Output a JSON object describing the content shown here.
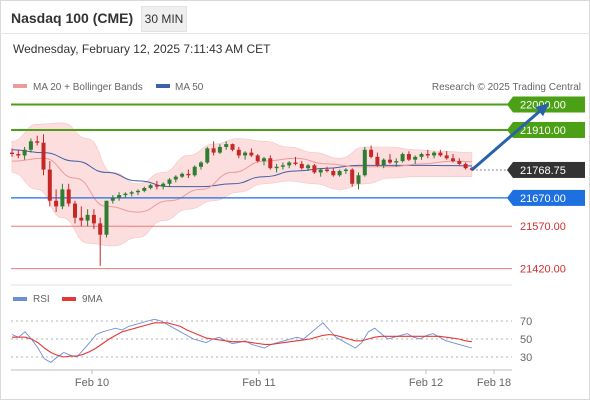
{
  "header": {
    "title": "Nasdaq 100 (CME)",
    "interval": "30 MIN",
    "datetime": "Wednesday, February 12, 2025 7:11:43 AM CET"
  },
  "legend": {
    "ma20": "MA 20 + Bollinger Bands",
    "ma50": "MA 50",
    "credit": "Research © 2025 Trading Central",
    "rsi": "RSI",
    "ma9": "9MA"
  },
  "colors": {
    "up": "#2e7d32",
    "down": "#c62828",
    "ma20": "#ef9a9a",
    "ma50": "#3f5fa8",
    "bands": "#fcdede",
    "resistance": "#4ca016",
    "current": "#333333",
    "support": "#1e6fe0",
    "weak_support": "#e87a7a",
    "arrow": "#2962a8",
    "rsi": "#6c8fd6",
    "rsi_ma": "#e53935"
  },
  "chart_data": [
    {
      "type": "candlestick",
      "ylim": [
        21380,
        22030
      ],
      "x_labels": [
        "Feb 10",
        "Feb 11",
        "Feb 12",
        "Feb 18"
      ],
      "candles": [
        [
          21830,
          21845,
          21815,
          21825
        ],
        [
          21825,
          21840,
          21810,
          21820
        ],
        [
          21820,
          21850,
          21805,
          21840
        ],
        [
          21840,
          21880,
          21830,
          21870
        ],
        [
          21870,
          21890,
          21855,
          21865
        ],
        [
          21865,
          21895,
          21750,
          21770
        ],
        [
          21770,
          21800,
          21640,
          21660
        ],
        [
          21660,
          21700,
          21620,
          21640
        ],
        [
          21640,
          21720,
          21630,
          21700
        ],
        [
          21700,
          21720,
          21640,
          21650
        ],
        [
          21650,
          21660,
          21580,
          21600
        ],
        [
          21600,
          21640,
          21570,
          21590
        ],
        [
          21590,
          21630,
          21570,
          21610
        ],
        [
          21610,
          21630,
          21560,
          21580
        ],
        [
          21580,
          21600,
          21430,
          21540
        ],
        [
          21540,
          21660,
          21530,
          21660
        ],
        [
          21660,
          21680,
          21650,
          21670
        ],
        [
          21670,
          21690,
          21660,
          21680
        ],
        [
          21680,
          21690,
          21670,
          21685
        ],
        [
          21685,
          21695,
          21675,
          21690
        ],
        [
          21690,
          21700,
          21680,
          21695
        ],
        [
          21695,
          21710,
          21690,
          21705
        ],
        [
          21705,
          21720,
          21700,
          21715
        ],
        [
          21715,
          21730,
          21700,
          21710
        ],
        [
          21710,
          21725,
          21700,
          21720
        ],
        [
          21720,
          21740,
          21710,
          21735
        ],
        [
          21735,
          21750,
          21725,
          21745
        ],
        [
          21745,
          21760,
          21740,
          21755
        ],
        [
          21755,
          21770,
          21740,
          21750
        ],
        [
          21750,
          21785,
          21745,
          21780
        ],
        [
          21780,
          21800,
          21770,
          21795
        ],
        [
          21795,
          21850,
          21790,
          21845
        ],
        [
          21845,
          21870,
          21820,
          21830
        ],
        [
          21830,
          21860,
          21825,
          21850
        ],
        [
          21850,
          21870,
          21840,
          21860
        ],
        [
          21860,
          21862,
          21835,
          21840
        ],
        [
          21840,
          21850,
          21810,
          21820
        ],
        [
          21820,
          21835,
          21805,
          21830
        ],
        [
          21830,
          21845,
          21815,
          21820
        ],
        [
          21820,
          21825,
          21795,
          21800
        ],
        [
          21800,
          21815,
          21785,
          21810
        ],
        [
          21810,
          21820,
          21770,
          21775
        ],
        [
          21775,
          21790,
          21760,
          21780
        ],
        [
          21780,
          21795,
          21770,
          21785
        ],
        [
          21785,
          21800,
          21775,
          21795
        ],
        [
          21795,
          21815,
          21785,
          21790
        ],
        [
          21790,
          21800,
          21770,
          21775
        ],
        [
          21775,
          21790,
          21765,
          21785
        ],
        [
          21785,
          21790,
          21755,
          21760
        ],
        [
          21760,
          21775,
          21745,
          21770
        ],
        [
          21770,
          21780,
          21760,
          21765
        ],
        [
          21765,
          21775,
          21745,
          21750
        ],
        [
          21750,
          21770,
          21745,
          21765
        ],
        [
          21765,
          21775,
          21755,
          21770
        ],
        [
          21770,
          21775,
          21710,
          21720
        ],
        [
          21720,
          21760,
          21700,
          21750
        ],
        [
          21750,
          21850,
          21745,
          21840
        ],
        [
          21840,
          21855,
          21810,
          21815
        ],
        [
          21815,
          21830,
          21780,
          21785
        ],
        [
          21785,
          21810,
          21775,
          21805
        ],
        [
          21805,
          21825,
          21790,
          21795
        ],
        [
          21795,
          21810,
          21780,
          21800
        ],
        [
          21800,
          21830,
          21795,
          21825
        ],
        [
          21825,
          21835,
          21800,
          21805
        ],
        [
          21805,
          21820,
          21790,
          21815
        ],
        [
          21815,
          21830,
          21805,
          21825
        ],
        [
          21825,
          21840,
          21810,
          21820
        ],
        [
          21820,
          21835,
          21810,
          21830
        ],
        [
          21830,
          21840,
          21815,
          21820
        ],
        [
          21820,
          21835,
          21805,
          21810
        ],
        [
          21810,
          21825,
          21795,
          21800
        ],
        [
          21800,
          21810,
          21785,
          21790
        ],
        [
          21790,
          21795,
          21770,
          21775
        ],
        [
          21775,
          21780,
          21765,
          21769
        ]
      ],
      "ma20": [
        [
          0,
          21800
        ],
        [
          5,
          21810
        ],
        [
          10,
          21740
        ],
        [
          15,
          21640
        ],
        [
          20,
          21620
        ],
        [
          25,
          21660
        ],
        [
          30,
          21700
        ],
        [
          35,
          21760
        ],
        [
          40,
          21800
        ],
        [
          45,
          21810
        ],
        [
          50,
          21790
        ],
        [
          55,
          21780
        ],
        [
          60,
          21780
        ],
        [
          65,
          21790
        ],
        [
          70,
          21800
        ],
        [
          73,
          21798
        ]
      ],
      "ma50": [
        [
          0,
          21840
        ],
        [
          5,
          21830
        ],
        [
          10,
          21800
        ],
        [
          15,
          21760
        ],
        [
          20,
          21730
        ],
        [
          25,
          21710
        ],
        [
          30,
          21710
        ],
        [
          35,
          21720
        ],
        [
          40,
          21745
        ],
        [
          45,
          21765
        ],
        [
          50,
          21775
        ],
        [
          55,
          21785
        ],
        [
          60,
          21785
        ],
        [
          65,
          21785
        ],
        [
          70,
          21784
        ],
        [
          73,
          21783
        ]
      ],
      "bb_upper": [
        [
          0,
          21870
        ],
        [
          4,
          21930
        ],
        [
          8,
          21935
        ],
        [
          12,
          21880
        ],
        [
          16,
          21760
        ],
        [
          20,
          21720
        ],
        [
          24,
          21760
        ],
        [
          28,
          21820
        ],
        [
          32,
          21860
        ],
        [
          36,
          21880
        ],
        [
          40,
          21870
        ],
        [
          44,
          21850
        ],
        [
          48,
          21830
        ],
        [
          52,
          21810
        ],
        [
          56,
          21850
        ],
        [
          60,
          21850
        ],
        [
          64,
          21840
        ],
        [
          68,
          21835
        ],
        [
          73,
          21830
        ]
      ],
      "bb_lower": [
        [
          0,
          21760
        ],
        [
          4,
          21700
        ],
        [
          8,
          21600
        ],
        [
          12,
          21510
        ],
        [
          16,
          21500
        ],
        [
          20,
          21530
        ],
        [
          24,
          21590
        ],
        [
          28,
          21630
        ],
        [
          32,
          21660
        ],
        [
          36,
          21690
        ],
        [
          40,
          21720
        ],
        [
          44,
          21730
        ],
        [
          48,
          21720
        ],
        [
          52,
          21700
        ],
        [
          56,
          21720
        ],
        [
          60,
          21740
        ],
        [
          64,
          21745
        ],
        [
          68,
          21745
        ],
        [
          73,
          21745
        ]
      ],
      "levels": [
        {
          "value": 22000,
          "label": "22000.00",
          "kind": "resistance"
        },
        {
          "value": 21910,
          "label": "21910.00",
          "kind": "resistance"
        },
        {
          "value": 21768.75,
          "label": "21768.75",
          "kind": "current"
        },
        {
          "value": 21670,
          "label": "21670.00",
          "kind": "support"
        },
        {
          "value": 21570,
          "label": "21570.00",
          "kind": "weak_support"
        },
        {
          "value": 21420,
          "label": "21420.00",
          "kind": "weak_support"
        }
      ],
      "arrow": {
        "from": [
          73,
          21769
        ],
        "to": [
          85,
          22000
        ]
      }
    },
    {
      "type": "line",
      "ylim": [
        20,
        80
      ],
      "y_ticks": [
        70,
        50,
        30
      ],
      "series": [
        {
          "name": "RSI",
          "values": [
            55,
            52,
            58,
            50,
            40,
            28,
            24,
            30,
            35,
            32,
            30,
            38,
            46,
            55,
            58,
            60,
            62,
            60,
            64,
            66,
            68,
            70,
            72,
            70,
            66,
            62,
            58,
            54,
            50,
            48,
            46,
            50,
            52,
            48,
            45,
            46,
            48,
            44,
            42,
            40,
            44,
            46,
            48,
            50,
            52,
            50,
            56,
            62,
            68,
            60,
            52,
            48,
            44,
            40,
            46,
            58,
            62,
            56,
            50,
            52,
            54,
            56,
            52,
            50,
            54,
            56,
            52,
            48,
            46,
            44,
            42,
            40
          ]
        },
        {
          "name": "9MA",
          "values": [
            52,
            52,
            52,
            50,
            46,
            40,
            35,
            32,
            30,
            31,
            31,
            33,
            36,
            40,
            45,
            50,
            54,
            58,
            60,
            62,
            64,
            66,
            68,
            68,
            68,
            66,
            64,
            60,
            57,
            54,
            51,
            50,
            49,
            48,
            47,
            47,
            47,
            46,
            45,
            44,
            44,
            45,
            46,
            47,
            48,
            49,
            50,
            52,
            54,
            55,
            54,
            52,
            50,
            48,
            48,
            50,
            52,
            53,
            53,
            53,
            53,
            53,
            53,
            53,
            53,
            53,
            53,
            52,
            51,
            50,
            48,
            47
          ]
        }
      ]
    }
  ]
}
